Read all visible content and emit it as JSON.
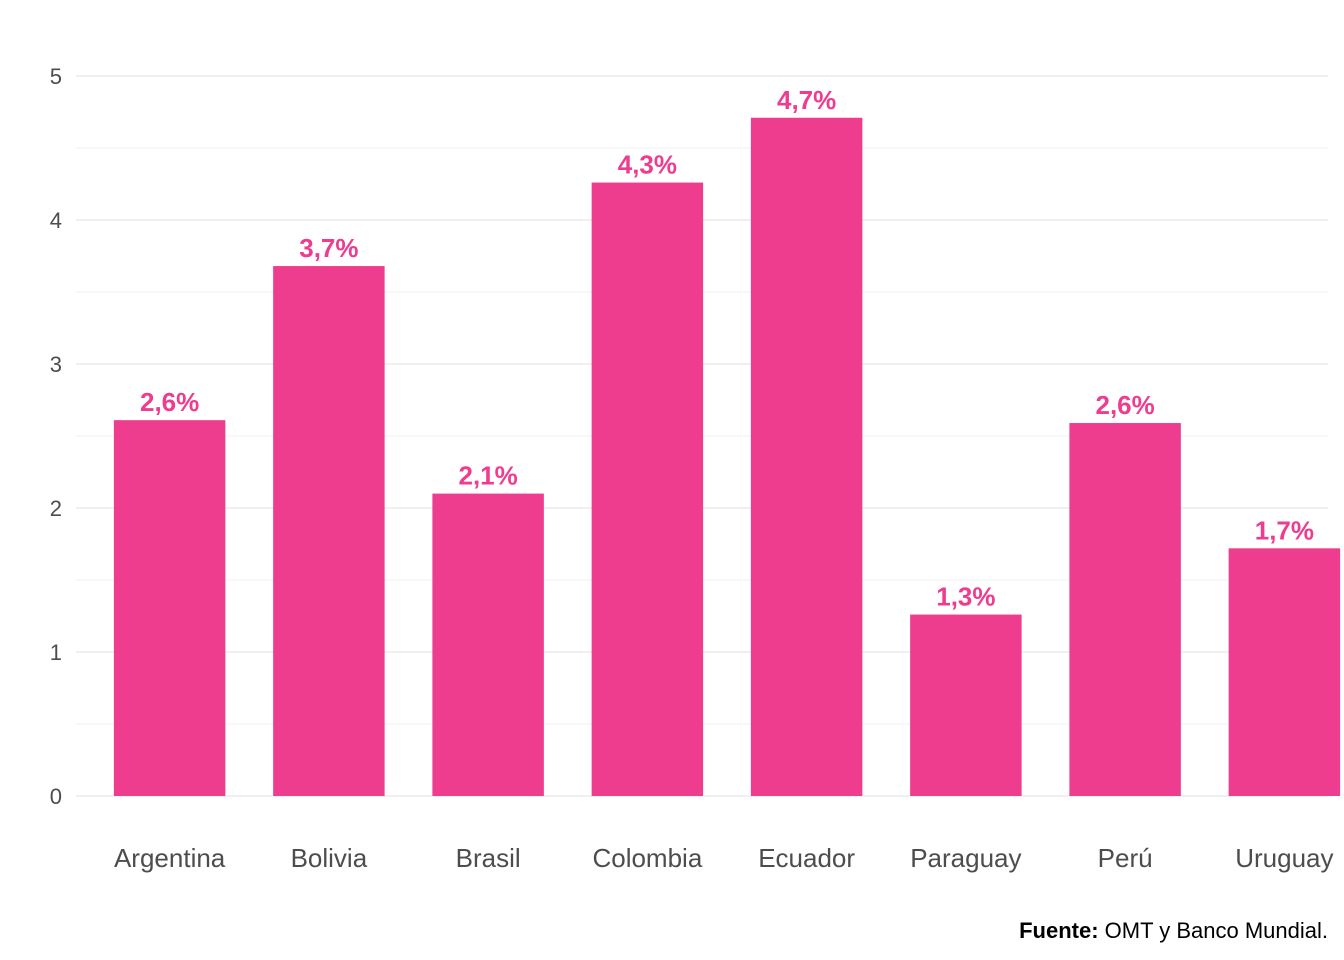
{
  "chart_data": {
    "type": "bar",
    "categories": [
      "Argentina",
      "Bolivia",
      "Brasil",
      "Colombia",
      "Ecuador",
      "Paraguay",
      "Perú",
      "Uruguay"
    ],
    "values": [
      2.61,
      3.68,
      2.1,
      4.26,
      4.71,
      1.26,
      2.59,
      1.72
    ],
    "data_labels": [
      "2,6%",
      "3,7%",
      "2,1%",
      "4,3%",
      "4,7%",
      "1,3%",
      "2,6%",
      "1,7%"
    ],
    "title": "",
    "xlabel": "",
    "ylabel": "",
    "ylim": [
      0,
      5
    ],
    "yticks": [
      0,
      1,
      2,
      3,
      4,
      5
    ],
    "grid": true,
    "bar_color": "#ee3d8f",
    "label_color": "#ee3d8f",
    "grid_color": "#ebebeb"
  },
  "source": {
    "prefix": "Fuente:",
    "text": " OMT y Banco Mundial."
  }
}
